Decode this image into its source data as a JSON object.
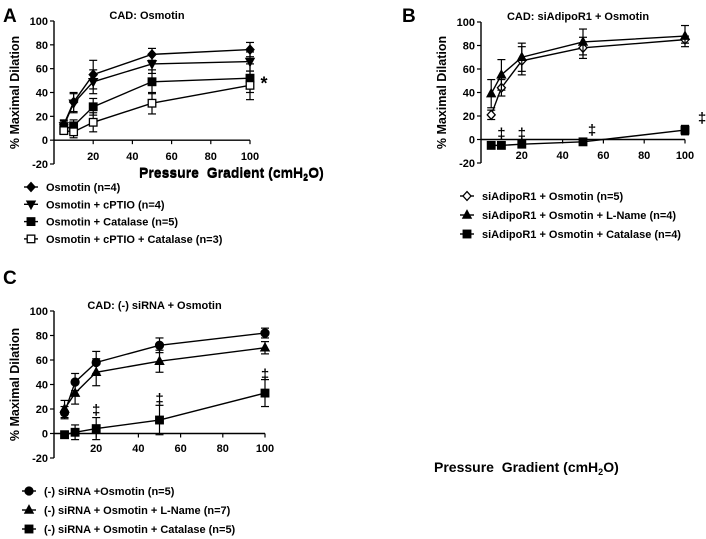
{
  "chart_data": [
    {
      "panel": "A",
      "type": "line",
      "title": "CAD: Osmotin",
      "xlabel": "Pressure  Gradient (cmH2O)",
      "ylabel": "% Maximal Dilation",
      "xlim": [
        0,
        100
      ],
      "ylim": [
        -20,
        100
      ],
      "xticks": [
        20,
        40,
        60,
        80,
        100
      ],
      "yticks": [
        -20,
        0,
        20,
        40,
        60,
        80,
        100
      ],
      "annotations": [
        {
          "text": "*",
          "x": 100,
          "y": 51
        }
      ],
      "series": [
        {
          "name": "Osmotin (n=4)",
          "marker": "diamond",
          "x": [
            5,
            10,
            20,
            50,
            100
          ],
          "y": [
            13,
            32,
            55,
            72,
            76
          ],
          "err": [
            4,
            8,
            12,
            5,
            6
          ]
        },
        {
          "name": "Osmotin + cPTIO (n=4)",
          "marker": "triangle-down",
          "x": [
            5,
            10,
            20,
            50,
            100
          ],
          "y": [
            12,
            31,
            49,
            64,
            66
          ],
          "err": [
            4,
            8,
            10,
            8,
            8
          ]
        },
        {
          "name": "Osmotin + Catalase (n=5)",
          "marker": "square",
          "x": [
            5,
            10,
            20,
            50,
            100
          ],
          "y": [
            9,
            12,
            28,
            49,
            52
          ],
          "err": [
            3,
            5,
            7,
            10,
            12
          ]
        },
        {
          "name": "Osmotin + cPTIO + Catalase (n=3)",
          "marker": "square-open",
          "x": [
            5,
            10,
            20,
            50,
            100
          ],
          "y": [
            8,
            7,
            15,
            31,
            46
          ],
          "err": [
            3,
            5,
            8,
            9,
            12
          ]
        }
      ]
    },
    {
      "panel": "B",
      "type": "line",
      "title": "CAD: siAdipoR1 + Osmotin",
      "xlabel": "Pressure  Gradient (cmH2O)",
      "ylabel": "% Maximal Dilation",
      "xlim": [
        0,
        100
      ],
      "ylim": [
        -20,
        100
      ],
      "xticks": [
        20,
        40,
        60,
        80,
        100
      ],
      "yticks": [
        -20,
        0,
        20,
        40,
        60,
        80,
        100
      ],
      "annotations": [
        {
          "text": "‡",
          "x": 10,
          "y": 1
        },
        {
          "text": "‡",
          "x": 20,
          "y": 1
        },
        {
          "text": "‡",
          "x": 50,
          "y": 4
        },
        {
          "text": "‡",
          "x": 100,
          "y": 14
        }
      ],
      "series": [
        {
          "name": "siAdipoR1 + Osmotin (n=5)",
          "marker": "diamond-open",
          "x": [
            5,
            10,
            20,
            50,
            100
          ],
          "y": [
            21,
            44,
            67,
            78,
            85
          ],
          "err": [
            4,
            7,
            12,
            9,
            3
          ]
        },
        {
          "name": "siAdipoR1 + Osmotin + L-Name (n=4)",
          "marker": "triangle",
          "x": [
            5,
            10,
            20,
            50,
            100
          ],
          "y": [
            39,
            55,
            70,
            83,
            88
          ],
          "err": [
            12,
            13,
            12,
            11,
            9
          ]
        },
        {
          "name": "siAdipoR1 + Osmotin + Catalase (n=4)",
          "marker": "square",
          "x": [
            5,
            10,
            20,
            50,
            100
          ],
          "y": [
            -5,
            -5,
            -4,
            -2,
            8
          ],
          "err": [
            2,
            3,
            2,
            1,
            4
          ]
        }
      ]
    },
    {
      "panel": "C",
      "type": "line",
      "title": "CAD: (-) siRNA + Osmotin",
      "xlabel": "Pressure  Gradient (cmH2O)",
      "ylabel": "% Maximal Dilation",
      "xlim": [
        0,
        100
      ],
      "ylim": [
        -20,
        100
      ],
      "xticks": [
        20,
        40,
        60,
        80,
        100
      ],
      "yticks": [
        -20,
        0,
        20,
        40,
        60,
        80,
        100
      ],
      "annotations": [
        {
          "text": "‡",
          "x": 20,
          "y": 15
        },
        {
          "text": "‡",
          "x": 50,
          "y": 24
        },
        {
          "text": "‡",
          "x": 100,
          "y": 44
        }
      ],
      "series": [
        {
          "name": "(-) siRNA +Osmotin (n=5)",
          "marker": "circle",
          "x": [
            5,
            10,
            20,
            50,
            100
          ],
          "y": [
            17,
            42,
            58,
            72,
            82
          ],
          "err": [
            5,
            7,
            9,
            6,
            4
          ]
        },
        {
          "name": "(-) siRNA + Osmotin + L-Name (n=7)",
          "marker": "triangle",
          "x": [
            5,
            10,
            20,
            50,
            100
          ],
          "y": [
            20,
            33,
            50,
            59,
            70
          ],
          "err": [
            7,
            9,
            11,
            9,
            5
          ]
        },
        {
          "name": "(-) siRNA + Osmotin + Catalase (n=5)",
          "marker": "square",
          "x": [
            5,
            10,
            20,
            50,
            100
          ],
          "y": [
            -1,
            1,
            4,
            11,
            33
          ],
          "err": [
            3,
            6,
            9,
            12,
            11
          ]
        }
      ]
    }
  ]
}
